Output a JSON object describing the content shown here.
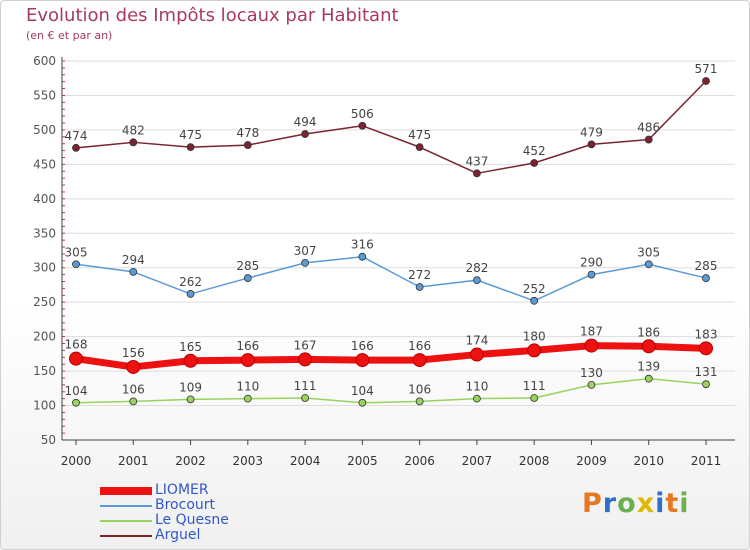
{
  "title": "Evolution des Impôts locaux par Habitant",
  "subtitle": "(en € et par an)",
  "brand": {
    "letters": [
      "P",
      "r",
      "o",
      "x",
      "i",
      "t",
      "i"
    ],
    "colors": [
      "#e87722",
      "#2f6fc9",
      "#6ab04c",
      "#e0b800",
      "#2f6fc9",
      "#e87722",
      "#6ab04c"
    ]
  },
  "chart_data": {
    "type": "line",
    "x": [
      "2000",
      "2001",
      "2002",
      "2003",
      "2004",
      "2005",
      "2006",
      "2007",
      "2008",
      "2009",
      "2010",
      "2011"
    ],
    "ylim": [
      50,
      600
    ],
    "yticks": [
      "50",
      "100",
      "150",
      "200",
      "250",
      "300",
      "350",
      "400",
      "450",
      "500",
      "550",
      "600"
    ],
    "grid": true,
    "legend_position": "bottom-left",
    "series": [
      {
        "name": "LIOMER",
        "color": "#ee1111",
        "emphasis": "thick",
        "values": [
          168,
          156,
          165,
          166,
          167,
          166,
          166,
          174,
          180,
          187,
          186,
          183
        ],
        "labels": [
          "168",
          "156",
          "165",
          "166",
          "167",
          "166",
          "166",
          "174",
          "180",
          "187",
          "186",
          "183"
        ]
      },
      {
        "name": "Brocourt",
        "color": "#5b9bd5",
        "emphasis": "normal",
        "values": [
          305,
          294,
          262,
          285,
          307,
          316,
          272,
          282,
          252,
          290,
          305,
          285
        ],
        "labels": [
          "305",
          "294",
          "262",
          "285",
          "307",
          "316",
          "272",
          "282",
          "252",
          "290",
          "305",
          "285"
        ]
      },
      {
        "name": "Le Quesne",
        "color": "#99d25f",
        "emphasis": "normal",
        "values": [
          104,
          106,
          109,
          110,
          111,
          104,
          106,
          110,
          111,
          130,
          139,
          131
        ],
        "labels": [
          "104",
          "106",
          "109",
          "110",
          "111",
          "104",
          "106",
          "110",
          "111",
          "130",
          "139",
          "131"
        ]
      },
      {
        "name": "Arguel",
        "color": "#7a2430",
        "emphasis": "normal",
        "values": [
          474,
          482,
          475,
          478,
          494,
          506,
          475,
          437,
          452,
          479,
          486,
          571
        ],
        "labels": [
          "474",
          "482",
          "475",
          "478",
          "494",
          "506",
          "475",
          "437",
          "452",
          "479",
          "486",
          "571"
        ]
      }
    ]
  }
}
